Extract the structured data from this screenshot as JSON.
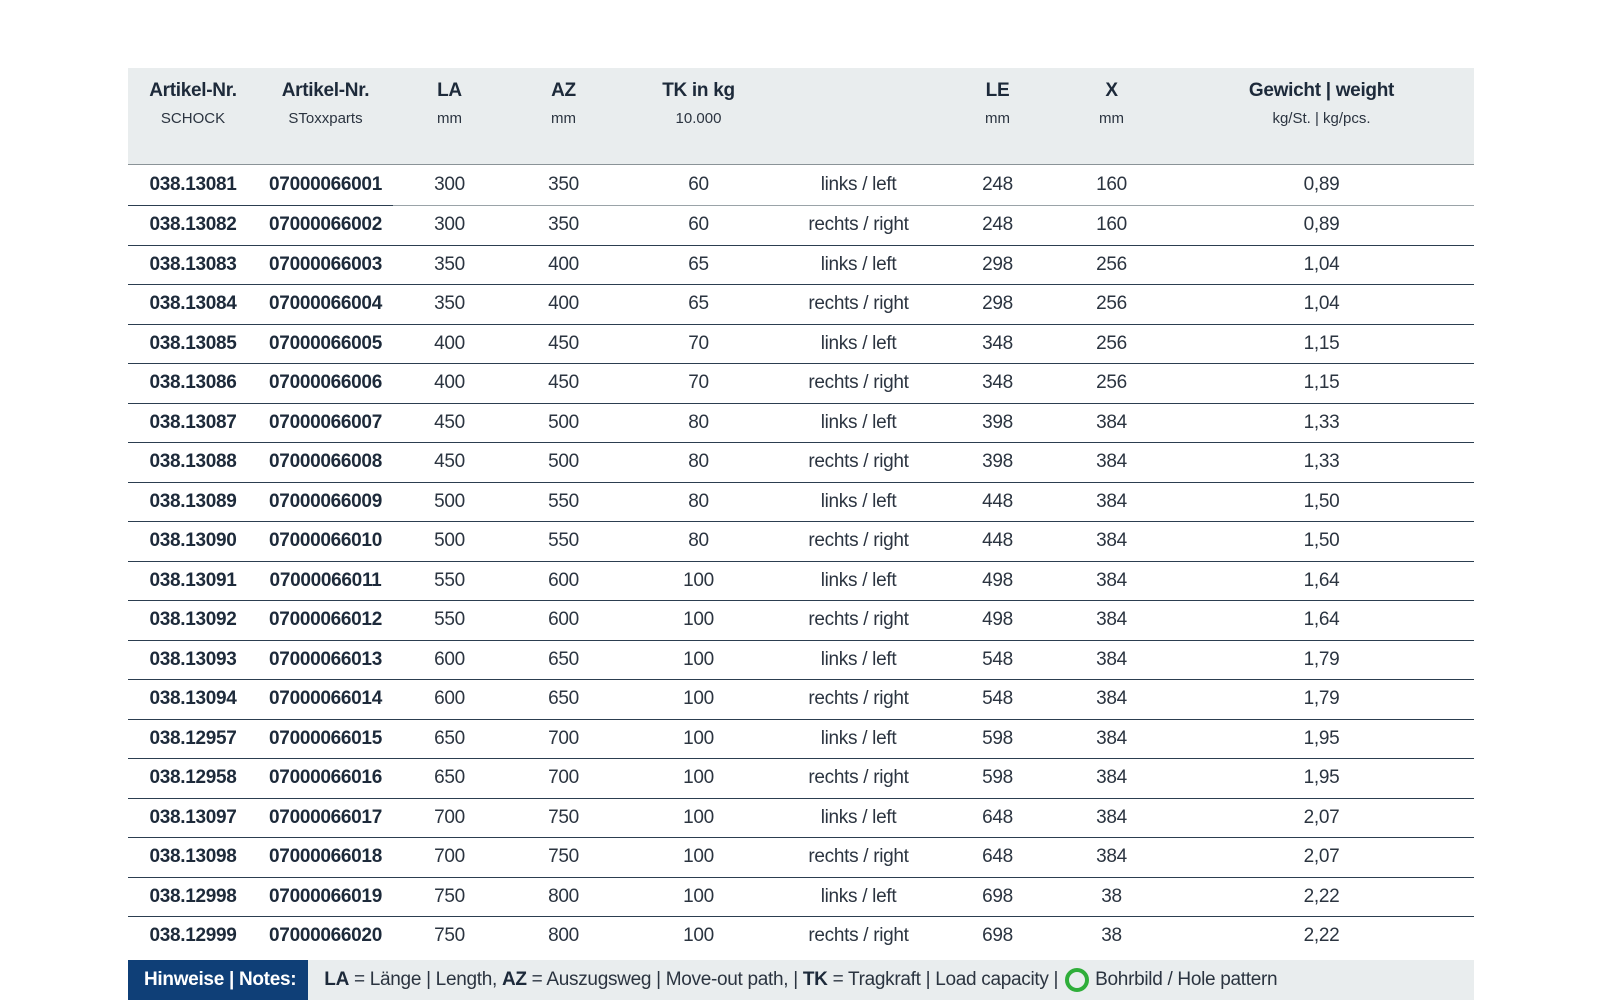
{
  "headers": [
    {
      "title": "Artikel-Nr.",
      "sub": "SCHOCK"
    },
    {
      "title": "Artikel-Nr.",
      "sub": "SToxxparts"
    },
    {
      "title": "LA",
      "sub": "mm"
    },
    {
      "title": "AZ",
      "sub": "mm"
    },
    {
      "title": "TK in kg",
      "sub": "10.000"
    },
    {
      "title": "",
      "sub": ""
    },
    {
      "title": "LE",
      "sub": "mm"
    },
    {
      "title": "X",
      "sub": "mm"
    },
    {
      "title": "Gewicht | weight",
      "sub": "kg/St. | kg/pcs."
    }
  ],
  "rows": [
    [
      "038.13081",
      "07000066001",
      "300",
      "350",
      "60",
      "links / left",
      "248",
      "160",
      "0,89"
    ],
    [
      "038.13082",
      "07000066002",
      "300",
      "350",
      "60",
      "rechts / right",
      "248",
      "160",
      "0,89"
    ],
    [
      "038.13083",
      "07000066003",
      "350",
      "400",
      "65",
      "links / left",
      "298",
      "256",
      "1,04"
    ],
    [
      "038.13084",
      "07000066004",
      "350",
      "400",
      "65",
      "rechts / right",
      "298",
      "256",
      "1,04"
    ],
    [
      "038.13085",
      "07000066005",
      "400",
      "450",
      "70",
      "links / left",
      "348",
      "256",
      "1,15"
    ],
    [
      "038.13086",
      "07000066006",
      "400",
      "450",
      "70",
      "rechts / right",
      "348",
      "256",
      "1,15"
    ],
    [
      "038.13087",
      "07000066007",
      "450",
      "500",
      "80",
      "links / left",
      "398",
      "384",
      "1,33"
    ],
    [
      "038.13088",
      "07000066008",
      "450",
      "500",
      "80",
      "rechts / right",
      "398",
      "384",
      "1,33"
    ],
    [
      "038.13089",
      "07000066009",
      "500",
      "550",
      "80",
      "links / left",
      "448",
      "384",
      "1,50"
    ],
    [
      "038.13090",
      "07000066010",
      "500",
      "550",
      "80",
      "rechts / right",
      "448",
      "384",
      "1,50"
    ],
    [
      "038.13091",
      "07000066011",
      "550",
      "600",
      "100",
      "links / left",
      "498",
      "384",
      "1,64"
    ],
    [
      "038.13092",
      "07000066012",
      "550",
      "600",
      "100",
      "rechts / right",
      "498",
      "384",
      "1,64"
    ],
    [
      "038.13093",
      "07000066013",
      "600",
      "650",
      "100",
      "links / left",
      "548",
      "384",
      "1,79"
    ],
    [
      "038.13094",
      "07000066014",
      "600",
      "650",
      "100",
      "rechts / right",
      "548",
      "384",
      "1,79"
    ],
    [
      "038.12957",
      "07000066015",
      "650",
      "700",
      "100",
      "links / left",
      "598",
      "384",
      "1,95"
    ],
    [
      "038.12958",
      "07000066016",
      "650",
      "700",
      "100",
      "rechts / right",
      "598",
      "384",
      "1,95"
    ],
    [
      "038.13097",
      "07000066017",
      "700",
      "750",
      "100",
      "links / left",
      "648",
      "384",
      "2,07"
    ],
    [
      "038.13098",
      "07000066018",
      "700",
      "750",
      "100",
      "rechts / right",
      "648",
      "384",
      "2,07"
    ],
    [
      "038.12998",
      "07000066019",
      "750",
      "800",
      "100",
      "links / left",
      "698",
      "38",
      "2,22"
    ],
    [
      "038.12999",
      "07000066020",
      "750",
      "800",
      "100",
      "rechts / right",
      "698",
      "38",
      "2,22"
    ]
  ],
  "notes": {
    "label": "Hinweise | Notes:",
    "la_abbr": "LA",
    "la_text": " = Länge | Length, ",
    "az_abbr": "AZ",
    "az_text": " = Auszugsweg | Move-out path, | ",
    "tk_abbr": "TK",
    "tk_text": " = Tragkraft | Load capacity | ",
    "hole_icon": "green-ring-icon",
    "hole_text": "Bohrbild / Hole pattern",
    "hole_color": "#2fae3a"
  },
  "colors": {
    "header_bg": "#e9edee",
    "notes_label_bg": "#0f3f77",
    "rule": "#2c3e50"
  }
}
